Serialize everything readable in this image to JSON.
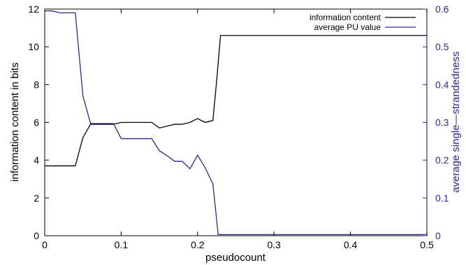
{
  "chart_data": {
    "type": "line",
    "xlabel": "pseudocount",
    "ylabel": "information content in bits",
    "y2label": "average single—strandedness",
    "xlim": [
      0,
      0.5
    ],
    "ylim": [
      0,
      12
    ],
    "y2lim": [
      0,
      0.6
    ],
    "xticks": [
      "0",
      "0.1",
      "0.2",
      "0.3",
      "0.4",
      "0.5"
    ],
    "yticks": [
      "0",
      "2",
      "4",
      "6",
      "8",
      "10",
      "12"
    ],
    "y2ticks": [
      "0",
      "0.1",
      "0.2",
      "0.3",
      "0.4",
      "0.5",
      "0.6"
    ],
    "grid": false,
    "legend_position": "top-right",
    "series": [
      {
        "name": "information content",
        "axis": "left",
        "color": "#000000",
        "x": [
          0,
          0.01,
          0.02,
          0.03,
          0.04,
          0.05,
          0.06,
          0.07,
          0.08,
          0.09,
          0.1,
          0.11,
          0.12,
          0.13,
          0.14,
          0.15,
          0.16,
          0.17,
          0.18,
          0.19,
          0.2,
          0.21,
          0.22,
          0.225,
          0.23,
          0.25,
          0.3,
          0.35,
          0.4,
          0.45,
          0.5
        ],
        "values": [
          3.7,
          3.7,
          3.7,
          3.7,
          3.7,
          5.2,
          5.9,
          5.9,
          5.9,
          5.9,
          6.0,
          6.0,
          6.0,
          6.0,
          6.0,
          5.7,
          5.8,
          5.9,
          5.9,
          6.0,
          6.2,
          6.0,
          6.1,
          8.2,
          10.6,
          10.6,
          10.6,
          10.6,
          10.6,
          10.6,
          10.6
        ]
      },
      {
        "name": "average PU value",
        "axis": "right",
        "color": "#2b2b8c",
        "x": [
          0,
          0.01,
          0.02,
          0.03,
          0.04,
          0.05,
          0.06,
          0.07,
          0.08,
          0.09,
          0.1,
          0.11,
          0.12,
          0.13,
          0.14,
          0.15,
          0.16,
          0.17,
          0.18,
          0.19,
          0.2,
          0.21,
          0.22,
          0.227,
          0.25,
          0.3,
          0.35,
          0.4,
          0.45,
          0.5
        ],
        "values": [
          0.595,
          0.595,
          0.59,
          0.59,
          0.59,
          0.37,
          0.297,
          0.297,
          0.297,
          0.297,
          0.257,
          0.257,
          0.257,
          0.257,
          0.257,
          0.225,
          0.212,
          0.197,
          0.197,
          0.177,
          0.213,
          0.18,
          0.137,
          0.003,
          0.003,
          0.003,
          0.003,
          0.003,
          0.003,
          0.003
        ]
      }
    ]
  },
  "colors": {
    "left_axis": "#000000",
    "right_axis": "#2b2b8c"
  }
}
